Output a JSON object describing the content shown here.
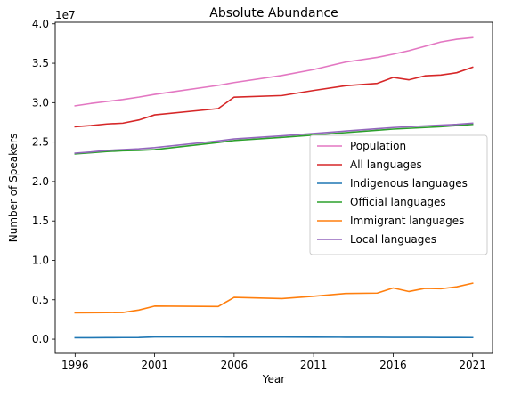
{
  "chart_data": {
    "type": "line",
    "title": "Absolute Abundance",
    "xlabel": "Year",
    "ylabel": "Number of Speakers",
    "offset_text": "1e7",
    "xlim": [
      1994.75,
      2022.25
    ],
    "ylim": [
      -1800000,
      40200000
    ],
    "xticks": [
      1996,
      2001,
      2006,
      2011,
      2016,
      2021
    ],
    "xtick_labels": [
      "1996",
      "2001",
      "2006",
      "2011",
      "2016",
      "2021"
    ],
    "yticks": [
      0,
      5000000,
      10000000,
      15000000,
      20000000,
      25000000,
      30000000,
      35000000,
      40000000
    ],
    "ytick_labels": [
      "0.0",
      "0.5",
      "1.0",
      "1.5",
      "2.0",
      "2.5",
      "3.0",
      "3.5",
      "4.0"
    ],
    "grid": false,
    "legend_position": "center-right",
    "x": [
      1996,
      1997,
      1998,
      1999,
      2000,
      2001,
      2005,
      2006,
      2009,
      2011,
      2013,
      2015,
      2016,
      2017,
      2018,
      2019,
      2020,
      2021
    ],
    "series": [
      {
        "name": "Population",
        "color": "#e377c2",
        "values": [
          29600000,
          29900000,
          30150000,
          30400000,
          30700000,
          31050000,
          32200000,
          32550000,
          33450000,
          34200000,
          35150000,
          35750000,
          36150000,
          36600000,
          37150000,
          37700000,
          38050000,
          38250000
        ]
      },
      {
        "name": "All languages",
        "color": "#d62728",
        "values": [
          26950000,
          27100000,
          27300000,
          27400000,
          27800000,
          28450000,
          29250000,
          30700000,
          30900000,
          31550000,
          32150000,
          32450000,
          33200000,
          32900000,
          33400000,
          33500000,
          33800000,
          34500000
        ]
      },
      {
        "name": "Indigenous languages",
        "color": "#1f77b4",
        "values": [
          180000,
          185000,
          200000,
          205000,
          210000,
          280000,
          275000,
          270000,
          265000,
          255000,
          245000,
          235000,
          230000,
          225000,
          220000,
          215000,
          210000,
          205000
        ]
      },
      {
        "name": "Official languages",
        "color": "#2ca02c",
        "values": [
          23500000,
          23650000,
          23800000,
          23900000,
          23950000,
          24050000,
          24950000,
          25200000,
          25600000,
          25900000,
          26200000,
          26500000,
          26650000,
          26750000,
          26850000,
          26950000,
          27100000,
          27250000
        ]
      },
      {
        "name": "Immigrant languages",
        "color": "#ff7f0e",
        "values": [
          3350000,
          3360000,
          3370000,
          3390000,
          3700000,
          4200000,
          4150000,
          5300000,
          5150000,
          5450000,
          5800000,
          5850000,
          6500000,
          6050000,
          6450000,
          6400000,
          6650000,
          7100000
        ]
      },
      {
        "name": "Local languages",
        "color": "#9467bd",
        "values": [
          23600000,
          23750000,
          23950000,
          24050000,
          24150000,
          24300000,
          25150000,
          25400000,
          25800000,
          26100000,
          26400000,
          26700000,
          26850000,
          26950000,
          27050000,
          27150000,
          27250000,
          27400000
        ]
      }
    ]
  }
}
